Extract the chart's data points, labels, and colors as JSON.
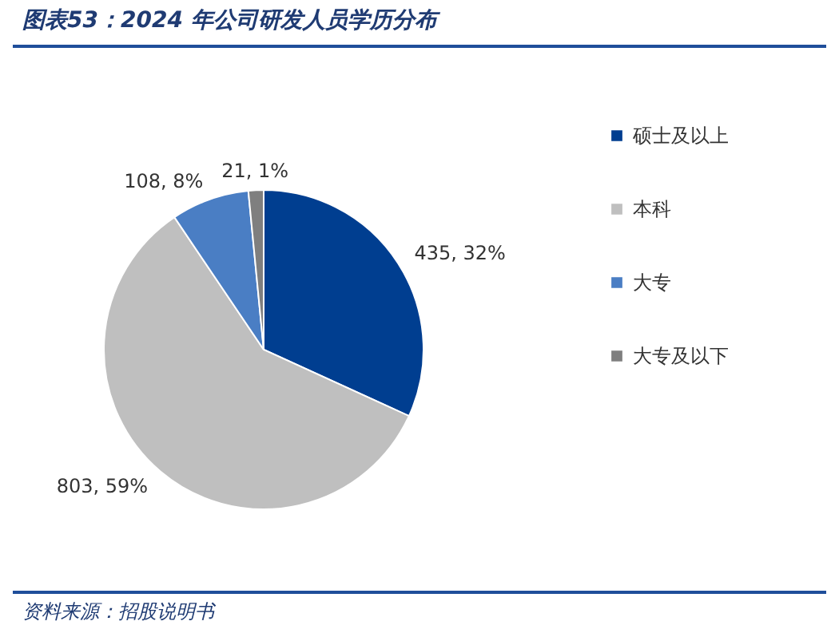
{
  "chart_data": {
    "type": "pie",
    "title": "图表53：2024 年公司研发人员学历分布",
    "categories": [
      "硕士及以上",
      "本科",
      "大专",
      "大专及以下"
    ],
    "values": [
      435,
      803,
      108,
      21
    ],
    "value_labels": [
      "435, 32%",
      "803, 59%",
      "108, 8%",
      "21, 1%"
    ],
    "colors": [
      "#003e90",
      "#bfbfbf",
      "#4a7ec4",
      "#7f7f7f"
    ],
    "legend": "right",
    "annotations": [
      "资料来源：招股说明书"
    ]
  }
}
